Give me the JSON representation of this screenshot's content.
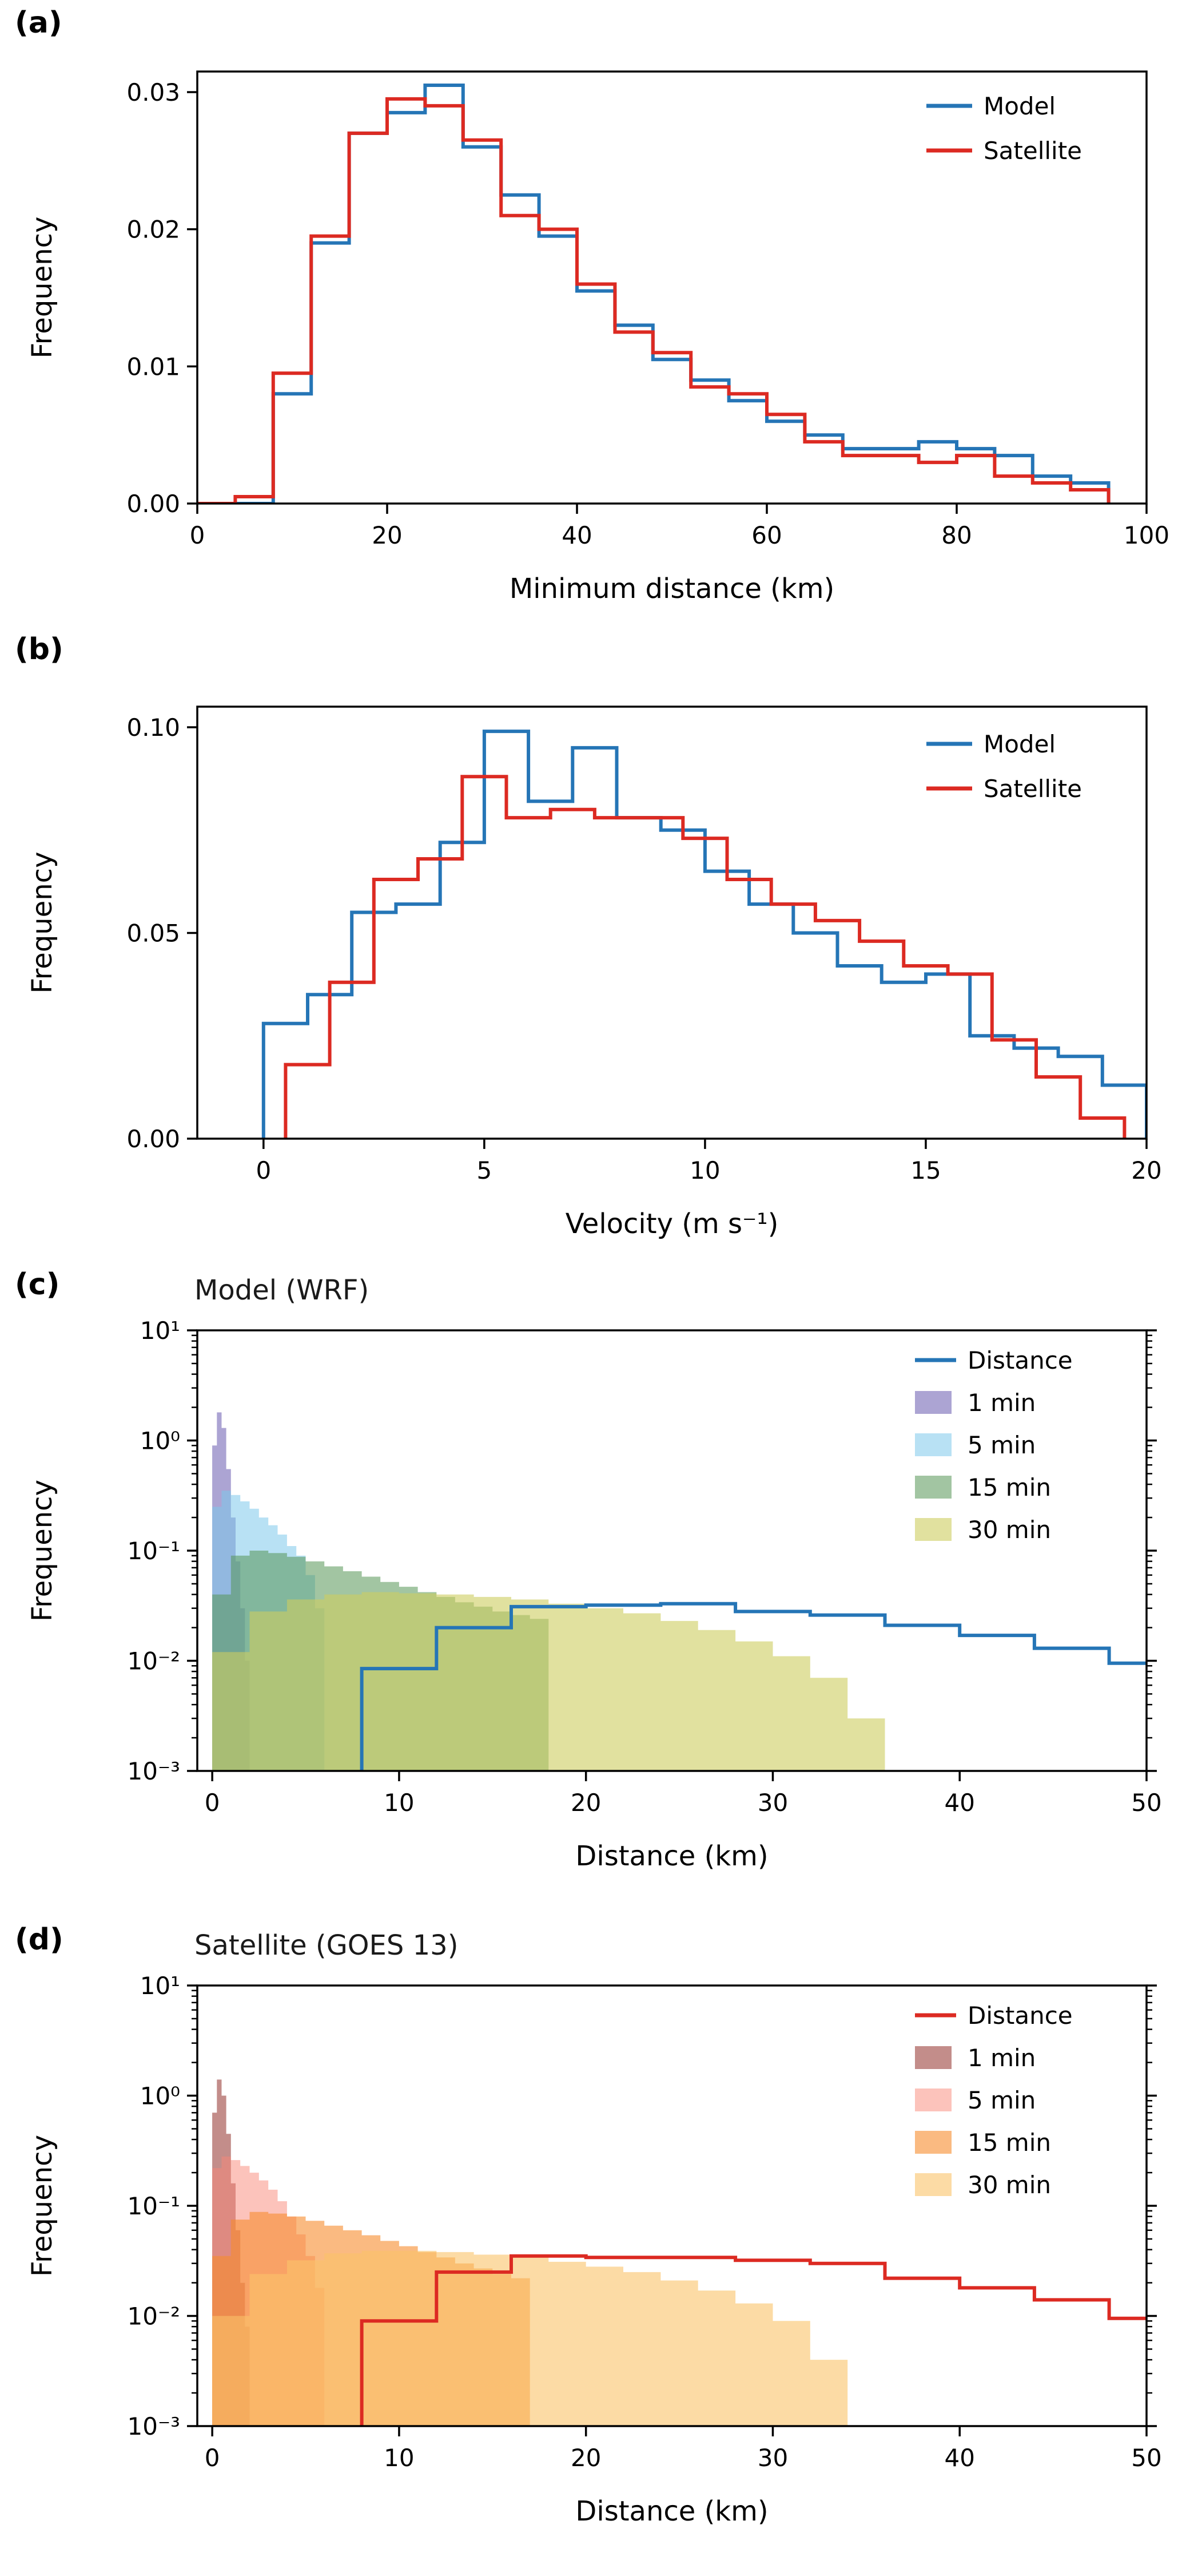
{
  "figure": {
    "background": "#ffffff"
  },
  "chart_data": [
    {
      "id": "a",
      "panel_label": "(a)",
      "type": "step-histogram",
      "yscale": "linear",
      "title": "",
      "xlabel": "Minimum distance (km)",
      "ylabel": "Frequency",
      "xlim": [
        0,
        100
      ],
      "ylim": [
        0,
        0.0315
      ],
      "xticks": {
        "values": [
          0,
          20,
          40,
          60,
          80,
          100
        ],
        "labels": [
          "0",
          "20",
          "40",
          "60",
          "80",
          "100"
        ]
      },
      "yticks": {
        "values": [
          0,
          0.01,
          0.02,
          0.03
        ],
        "labels": [
          "0.00",
          "0.01",
          "0.02",
          "0.03"
        ]
      },
      "legend_position": "top-right",
      "series": [
        {
          "name": "Model",
          "color": "#2575b6",
          "bin_start": 0,
          "bin_width": 4,
          "values": [
            0,
            0,
            0.008,
            0.019,
            0.027,
            0.0285,
            0.0305,
            0.026,
            0.0225,
            0.0195,
            0.0155,
            0.013,
            0.0105,
            0.009,
            0.0075,
            0.006,
            0.005,
            0.004,
            0.004,
            0.0045,
            0.004,
            0.0035,
            0.002,
            0.0015
          ]
        },
        {
          "name": "Satellite",
          "color": "#dc2a22",
          "bin_start": 0,
          "bin_width": 4,
          "values": [
            0,
            0.0005,
            0.0095,
            0.0195,
            0.027,
            0.0295,
            0.029,
            0.0265,
            0.021,
            0.02,
            0.016,
            0.0125,
            0.011,
            0.0085,
            0.008,
            0.0065,
            0.0045,
            0.0035,
            0.0035,
            0.003,
            0.0035,
            0.002,
            0.0015,
            0.001
          ]
        }
      ]
    },
    {
      "id": "b",
      "panel_label": "(b)",
      "type": "step-histogram",
      "yscale": "linear",
      "title": "",
      "xlabel": "Velocity (m s⁻¹)",
      "ylabel": "Frequency",
      "xlim": [
        -1.5,
        20
      ],
      "ylim": [
        0,
        0.105
      ],
      "xticks": {
        "values": [
          0,
          5,
          10,
          15,
          20
        ],
        "labels": [
          "0",
          "5",
          "10",
          "15",
          "20"
        ]
      },
      "yticks": {
        "values": [
          0,
          0.05,
          0.1
        ],
        "labels": [
          "0.00",
          "0.05",
          "0.10"
        ]
      },
      "legend_position": "top-right",
      "series": [
        {
          "name": "Model",
          "color": "#2575b6",
          "bin_start": 0,
          "bin_width": 1,
          "values": [
            0.028,
            0.035,
            0.055,
            0.057,
            0.072,
            0.099,
            0.082,
            0.095,
            0.078,
            0.075,
            0.065,
            0.057,
            0.05,
            0.042,
            0.038,
            0.04,
            0.025,
            0.022,
            0.02,
            0.013
          ]
        },
        {
          "name": "Satellite",
          "color": "#dc2a22",
          "bin_start": 0.5,
          "bin_width": 1,
          "values": [
            0.018,
            0.038,
            0.063,
            0.068,
            0.088,
            0.078,
            0.08,
            0.078,
            0.078,
            0.073,
            0.063,
            0.057,
            0.053,
            0.048,
            0.042,
            0.04,
            0.024,
            0.015,
            0.005
          ]
        }
      ]
    },
    {
      "id": "c",
      "panel_label": "(c)",
      "type": "log-histogram",
      "yscale": "log",
      "title": "Model (WRF)",
      "xlabel": "Distance (km)",
      "ylabel": "Frequency",
      "xlim": [
        -0.8,
        50
      ],
      "ylog": [
        -3,
        1
      ],
      "xticks": {
        "values": [
          0,
          10,
          20,
          30,
          40,
          50
        ],
        "labels": [
          "0",
          "10",
          "20",
          "30",
          "40",
          "50"
        ]
      },
      "yticks": {
        "exponents": [
          -3,
          -2,
          -1,
          0,
          1
        ],
        "labels": [
          "10⁻³",
          "10⁻²",
          "10⁻¹",
          "10⁰",
          "10¹"
        ]
      },
      "legend_position": "top-right",
      "line_series": {
        "name": "Distance",
        "color": "#2575b6",
        "bin_start": 0,
        "bin_width": 4,
        "values": [
          0,
          0,
          0.0085,
          0.02,
          0.031,
          0.032,
          0.033,
          0.028,
          0.026,
          0.021,
          0.017,
          0.013,
          0.0095
        ]
      },
      "fill_series": [
        {
          "name": "1 min",
          "color": "rgba(116,104,182,0.60)",
          "bin_start": 0,
          "bin_width": 0.25,
          "values": [
            0.9,
            1.8,
            1.3,
            0.55,
            0.2,
            0.08,
            0.03,
            0.01
          ]
        },
        {
          "name": "5 min",
          "color": "rgba(125,200,235,0.55)",
          "bin_start": 0,
          "bin_width": 0.5,
          "values": [
            0.25,
            0.35,
            0.32,
            0.28,
            0.24,
            0.2,
            0.17,
            0.14,
            0.11,
            0.09,
            0.06,
            0.03
          ]
        },
        {
          "name": "15 min",
          "color": "rgba(85,150,85,0.55)",
          "bin_start": 0,
          "bin_width": 1,
          "values": [
            0.04,
            0.09,
            0.1,
            0.095,
            0.088,
            0.08,
            0.072,
            0.065,
            0.058,
            0.052,
            0.047,
            0.042,
            0.038,
            0.034,
            0.031,
            0.028,
            0.026,
            0.024
          ]
        },
        {
          "name": "30 min",
          "color": "rgba(205,205,95,0.60)",
          "bin_start": 0,
          "bin_width": 2,
          "values": [
            0.012,
            0.028,
            0.036,
            0.04,
            0.042,
            0.041,
            0.04,
            0.038,
            0.036,
            0.033,
            0.03,
            0.027,
            0.023,
            0.019,
            0.015,
            0.011,
            0.007,
            0.003
          ]
        }
      ]
    },
    {
      "id": "d",
      "panel_label": "(d)",
      "type": "log-histogram",
      "yscale": "log",
      "title": "Satellite (GOES 13)",
      "xlabel": "Distance (km)",
      "ylabel": "Frequency",
      "xlim": [
        -0.8,
        50
      ],
      "ylog": [
        -3,
        1
      ],
      "xticks": {
        "values": [
          0,
          10,
          20,
          30,
          40,
          50
        ],
        "labels": [
          "0",
          "10",
          "20",
          "30",
          "40",
          "50"
        ]
      },
      "yticks": {
        "exponents": [
          -3,
          -2,
          -1,
          0,
          1
        ],
        "labels": [
          "10⁻³",
          "10⁻²",
          "10⁻¹",
          "10⁰",
          "10¹"
        ]
      },
      "legend_position": "top-right",
      "line_series": {
        "name": "Distance",
        "color": "#dc2a22",
        "bin_start": 0,
        "bin_width": 4,
        "values": [
          0,
          0,
          0.009,
          0.025,
          0.035,
          0.034,
          0.034,
          0.032,
          0.03,
          0.022,
          0.018,
          0.014,
          0.0095
        ]
      },
      "fill_series": [
        {
          "name": "1 min",
          "color": "rgba(155,65,60,0.60)",
          "bin_start": 0,
          "bin_width": 0.25,
          "values": [
            0.7,
            1.4,
            1.0,
            0.45,
            0.16,
            0.06,
            0.02,
            0.008
          ]
        },
        {
          "name": "5 min",
          "color": "rgba(250,135,120,0.50)",
          "bin_start": 0,
          "bin_width": 0.5,
          "values": [
            0.22,
            0.28,
            0.26,
            0.23,
            0.2,
            0.17,
            0.14,
            0.11,
            0.08,
            0.055,
            0.035,
            0.018
          ]
        },
        {
          "name": "15 min",
          "color": "rgba(247,140,45,0.60)",
          "bin_start": 0,
          "bin_width": 1,
          "values": [
            0.035,
            0.075,
            0.088,
            0.085,
            0.08,
            0.073,
            0.066,
            0.06,
            0.054,
            0.048,
            0.043,
            0.038,
            0.034,
            0.03,
            0.027,
            0.024,
            0.022
          ]
        },
        {
          "name": "30 min",
          "color": "rgba(250,195,105,0.60)",
          "bin_start": 0,
          "bin_width": 2,
          "values": [
            0.01,
            0.024,
            0.032,
            0.037,
            0.039,
            0.039,
            0.038,
            0.036,
            0.034,
            0.031,
            0.028,
            0.025,
            0.021,
            0.017,
            0.013,
            0.009,
            0.004
          ]
        }
      ]
    }
  ]
}
